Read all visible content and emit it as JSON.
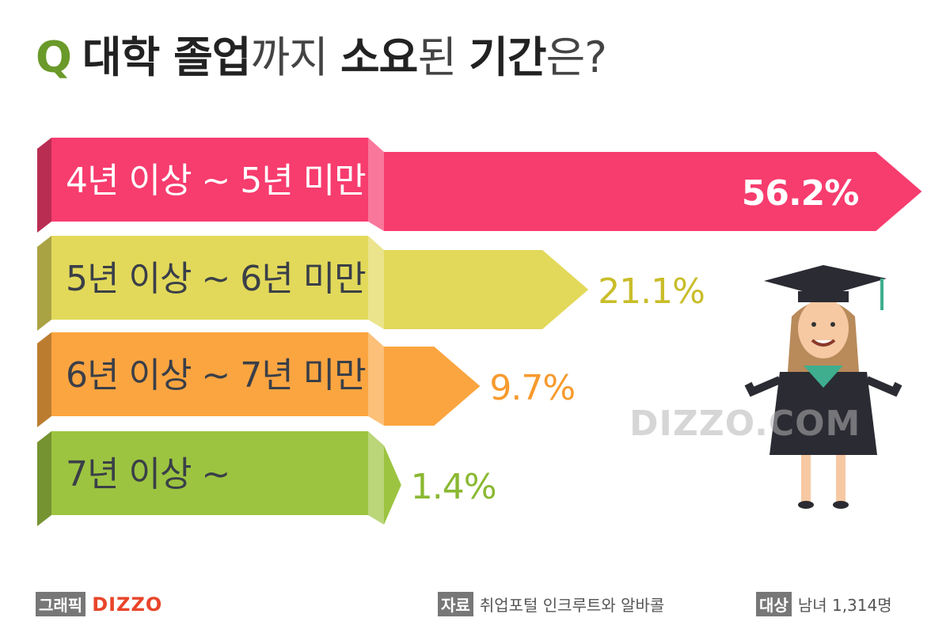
{
  "title": {
    "prefix": "Q",
    "parts": [
      "대학 졸업",
      "까지 ",
      "소요",
      "된 ",
      "기간",
      "은?"
    ]
  },
  "chart_data": {
    "type": "bar",
    "orientation": "horizontal",
    "title": "대학 졸업까지 소요된 기간은?",
    "categories": [
      "4년 이상 ~ 5년 미만",
      "5년 이상 ~ 6년 미만",
      "6년 이상 ~ 7년 미만",
      "7년 이상 ~"
    ],
    "values": [
      56.2,
      21.1,
      9.7,
      1.4
    ],
    "value_labels": [
      "56.2%",
      "21.1%",
      "9.7%",
      "1.4%"
    ],
    "unit": "%",
    "colors": [
      "#f73c6e",
      "#e2d95a",
      "#fba540",
      "#9cc440"
    ],
    "label_colors": [
      "#ffffff",
      "#3a3f48",
      "#3a3f48",
      "#3a3f48"
    ],
    "value_label_colors": [
      "#ffffff",
      "#c9bd2a",
      "#f79a2e",
      "#8ab832"
    ],
    "grid": false
  },
  "watermark": "DIZZO.COM",
  "footer": {
    "credit_tag": "그래픽",
    "credit_brand": "DIZZO",
    "source_tag": "자료",
    "source_text": "취업포털 인크루트와 알바콜",
    "target_tag": "대상",
    "target_text": "남녀 1,314명"
  }
}
